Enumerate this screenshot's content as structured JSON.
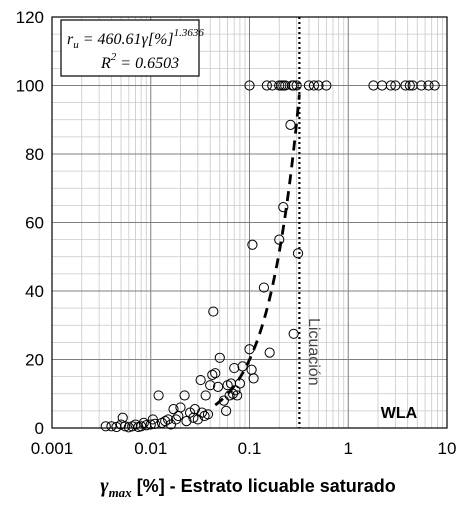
{
  "chart_data": {
    "type": "scatter",
    "x_scale": "log",
    "xlim": [
      0.001,
      10
    ],
    "ylim": [
      0,
      120
    ],
    "grid": true,
    "x_ticks": [
      "0.001",
      "0.01",
      "0.1",
      "1",
      "10"
    ],
    "y_ticks": [
      "0",
      "20",
      "40",
      "60",
      "80",
      "100",
      "120"
    ],
    "xlabel": {
      "symbol": "γ",
      "subscript": "max",
      "rest": " [%] - Estrato licuable saturado"
    },
    "equation": {
      "lhs": "r",
      "lhs_sub": "u",
      "rhs": " = 460.61γ[%]",
      "exponent": "1.3636",
      "r2_label": "R",
      "r2_exp": "2",
      "r2_value": " = 0.6503"
    },
    "threshold": {
      "x": 0.32,
      "label": "Licuación"
    },
    "site_label": "WLA",
    "fit": {
      "coef": 460.61,
      "exponent": 1.3636,
      "x_range": [
        0.045,
        0.32
      ]
    },
    "points": [
      [
        0.0035,
        0.5
      ],
      [
        0.004,
        0.5
      ],
      [
        0.0045,
        0.3
      ],
      [
        0.005,
        1.0
      ],
      [
        0.0052,
        3.0
      ],
      [
        0.0055,
        0.5
      ],
      [
        0.006,
        0.2
      ],
      [
        0.0065,
        0.5
      ],
      [
        0.007,
        1.0
      ],
      [
        0.0075,
        0.3
      ],
      [
        0.008,
        0.5
      ],
      [
        0.0085,
        1.5
      ],
      [
        0.009,
        0.8
      ],
      [
        0.01,
        1.0
      ],
      [
        0.0105,
        2.5
      ],
      [
        0.011,
        1.2
      ],
      [
        0.012,
        9.5
      ],
      [
        0.013,
        1.5
      ],
      [
        0.014,
        2.0
      ],
      [
        0.015,
        2.5
      ],
      [
        0.016,
        1.0
      ],
      [
        0.017,
        5.5
      ],
      [
        0.018,
        2.5
      ],
      [
        0.019,
        3.5
      ],
      [
        0.02,
        6.0
      ],
      [
        0.022,
        9.5
      ],
      [
        0.023,
        2.0
      ],
      [
        0.025,
        4.5
      ],
      [
        0.027,
        3.0
      ],
      [
        0.028,
        5.5
      ],
      [
        0.03,
        2.5
      ],
      [
        0.032,
        14.0
      ],
      [
        0.033,
        4.5
      ],
      [
        0.035,
        3.5
      ],
      [
        0.036,
        9.5
      ],
      [
        0.038,
        4.0
      ],
      [
        0.04,
        12.5
      ],
      [
        0.042,
        15.5
      ],
      [
        0.043,
        34.0
      ],
      [
        0.045,
        16.0
      ],
      [
        0.048,
        12.0
      ],
      [
        0.05,
        20.5
      ],
      [
        0.055,
        8.0
      ],
      [
        0.058,
        5.0
      ],
      [
        0.06,
        12.5
      ],
      [
        0.063,
        9.5
      ],
      [
        0.065,
        13.0
      ],
      [
        0.068,
        10.0
      ],
      [
        0.07,
        17.5
      ],
      [
        0.072,
        11.0
      ],
      [
        0.075,
        9.5
      ],
      [
        0.08,
        13.0
      ],
      [
        0.085,
        18.0
      ],
      [
        0.1,
        23.0
      ],
      [
        0.105,
        17.0
      ],
      [
        0.107,
        53.5
      ],
      [
        0.11,
        14.5
      ],
      [
        0.14,
        41.0
      ],
      [
        0.16,
        22.0
      ],
      [
        0.2,
        55.0
      ],
      [
        0.22,
        64.5
      ],
      [
        0.26,
        88.5
      ],
      [
        0.28,
        27.5
      ],
      [
        0.31,
        51.0
      ],
      [
        0.1,
        100
      ],
      [
        0.15,
        100
      ],
      [
        0.17,
        100
      ],
      [
        0.2,
        100
      ],
      [
        0.21,
        100
      ],
      [
        0.22,
        100
      ],
      [
        0.23,
        100
      ],
      [
        0.27,
        100
      ],
      [
        0.28,
        100
      ],
      [
        0.3,
        100
      ],
      [
        0.4,
        100
      ],
      [
        0.45,
        100
      ],
      [
        0.5,
        100
      ],
      [
        0.6,
        100
      ],
      [
        1.8,
        100
      ],
      [
        2.2,
        100
      ],
      [
        2.7,
        100
      ],
      [
        3.0,
        100
      ],
      [
        3.8,
        100
      ],
      [
        4.2,
        100
      ],
      [
        4.5,
        100
      ],
      [
        5.5,
        100
      ],
      [
        6.5,
        100
      ],
      [
        7.5,
        100
      ]
    ]
  }
}
